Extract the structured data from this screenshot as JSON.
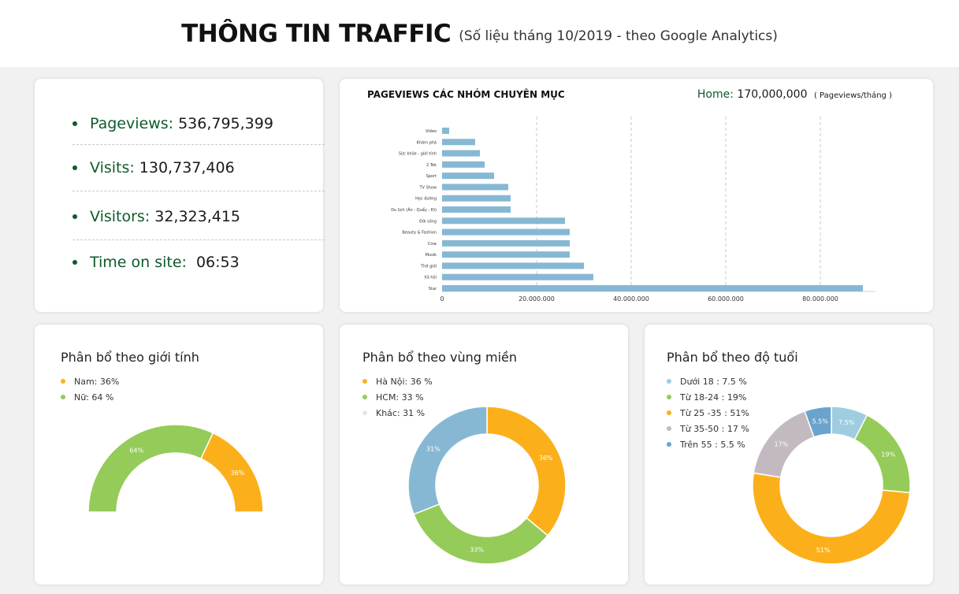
{
  "header": {
    "title": "THÔNG TIN TRAFFIC",
    "subtitle": "(Số liệu tháng 10/2019 - theo Google Analytics)"
  },
  "stats": [
    {
      "label": "Pageviews:",
      "value": "536,795,399"
    },
    {
      "label": "Visits:",
      "value": "130,737,406"
    },
    {
      "label": "Visitors:",
      "value": "32,323,415"
    },
    {
      "label": "Time on site:",
      "value": "06:53"
    }
  ],
  "colors": {
    "green_text": "#0e5a2a",
    "bar": "#86b8d4",
    "orange": "#fbb01b",
    "green": "#95cb58",
    "blue": "#86b8d4",
    "light_blue": "#dbe8f1",
    "light_steel": "#9ecde0",
    "grey_mauve": "#c2b9c1",
    "steel": "#6aa3cc"
  },
  "chart_data": [
    {
      "type": "bar",
      "orientation": "horizontal",
      "title": "PAGEVIEWS CÁC NHÓM CHUYÊN MỤC",
      "annotation": {
        "label": "Home:",
        "value": "170,000,000",
        "unit": "( Pageviews/tháng )"
      },
      "categories": [
        "Video",
        "Khám phá",
        "Sức khỏe - giới tính",
        "2 Tek",
        "Sport",
        "TV Show",
        "Học đường",
        "Du lịch (Ăn - Quẩy - Đi)",
        "Đời sống",
        "Beauty & Fashion",
        "Cine",
        "Musik",
        "Thế giới",
        "Xã hội",
        "Star"
      ],
      "values": [
        1500000,
        7000000,
        8000000,
        9000000,
        11000000,
        14000000,
        14500000,
        14500000,
        26000000,
        27000000,
        27000000,
        27000000,
        30000000,
        32000000,
        89000000
      ],
      "xlim": [
        0,
        90000000
      ],
      "xticks": [
        0,
        20000000,
        40000000,
        60000000,
        80000000
      ],
      "xtick_labels": [
        "0",
        "20.000.000",
        "40.000.000",
        "60.000.000",
        "80.000.000"
      ],
      "grid": "vertical dashed"
    },
    {
      "type": "pie",
      "style": "semi-donut",
      "title": "Phân bổ theo giới tính",
      "legend": [
        "Nam: 36%",
        "Nữ: 64 %"
      ],
      "series": [
        {
          "name": "Nam",
          "value": 36,
          "label": "36%",
          "color": "#fbb01b"
        },
        {
          "name": "Nữ",
          "value": 64,
          "label": "64%",
          "color": "#95cb58"
        }
      ]
    },
    {
      "type": "pie",
      "style": "donut",
      "title": "Phân bổ theo vùng miền",
      "legend": [
        "Hà Nội: 36 %",
        "HCM: 33 %",
        "Khác: 31 %"
      ],
      "series": [
        {
          "name": "Hà Nội",
          "value": 36,
          "label": "36%",
          "color": "#fbb01b",
          "legend_color": "#fbb01b"
        },
        {
          "name": "HCM",
          "value": 33,
          "label": "33%",
          "color": "#95cb58",
          "legend_color": "#95cb58"
        },
        {
          "name": "Khác",
          "value": 31,
          "label": "31%",
          "color": "#86b8d4",
          "legend_color": "#dbe8f1"
        }
      ]
    },
    {
      "type": "pie",
      "style": "donut",
      "title": "Phân bổ theo độ tuổi",
      "legend": [
        "Dưới 18 : 7.5 %",
        "Từ 18-24 : 19%",
        "Từ 25 -35 : 51%",
        "Từ 35-50 : 17 %",
        "Trên 55 : 5.5 %"
      ],
      "series": [
        {
          "name": "Dưới 18",
          "value": 7.5,
          "label": "7.5%",
          "color": "#9ecde0"
        },
        {
          "name": "Từ 18-24",
          "value": 19,
          "label": "19%",
          "color": "#95cb58"
        },
        {
          "name": "Từ 25 -35",
          "value": 51,
          "label": "51%",
          "color": "#fbb01b"
        },
        {
          "name": "Từ 35-50",
          "value": 17,
          "label": "17%",
          "color": "#c2b9c1"
        },
        {
          "name": "Trên 55",
          "value": 5.5,
          "label": "5.5%",
          "color": "#6aa3cc"
        }
      ]
    }
  ]
}
